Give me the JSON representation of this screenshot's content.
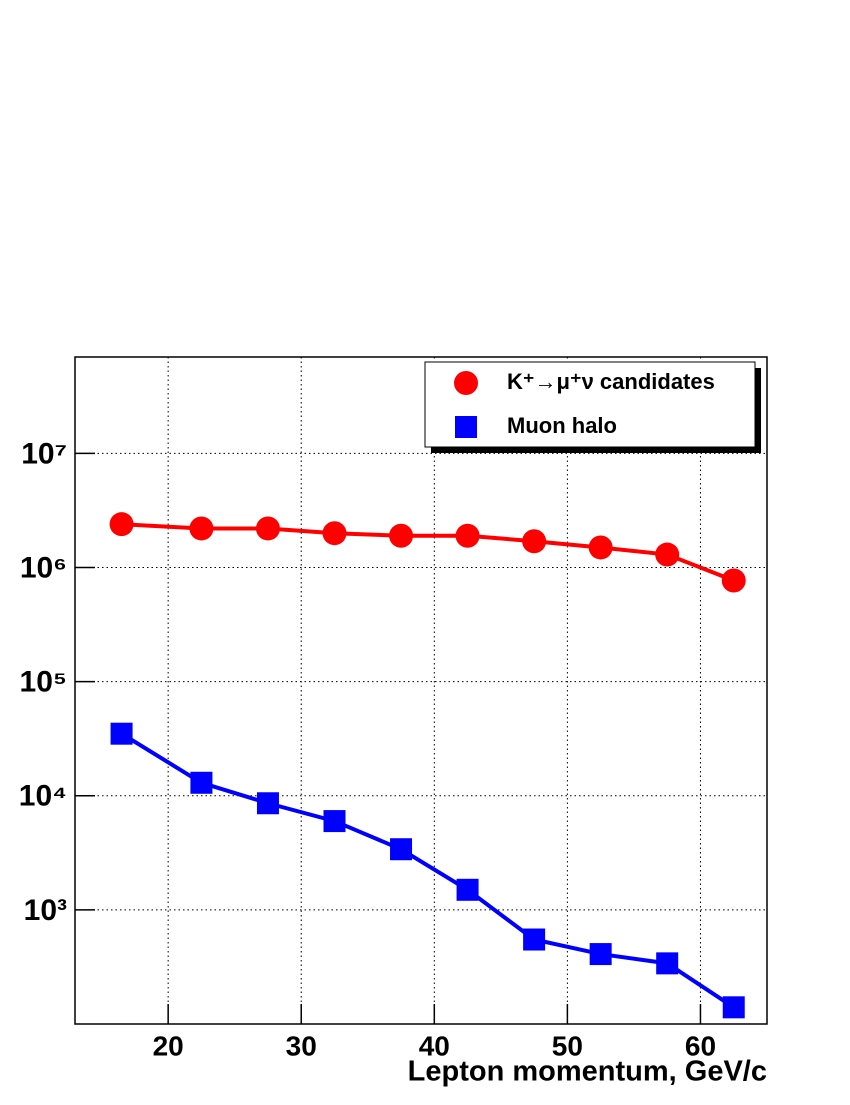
{
  "chart_data": {
    "type": "line",
    "x_label": "Lepton momentum, GeV/c",
    "x": [
      16.5,
      22.5,
      27.5,
      32.5,
      37.5,
      42.5,
      47.5,
      52.5,
      57.5,
      62.5
    ],
    "series": [
      {
        "name": "K⁺→μ⁺ν candidates",
        "color": "#ff0000",
        "marker": "circle",
        "values": [
          2400000,
          2200000,
          2200000,
          2000000,
          1900000,
          1900000,
          1700000,
          1500000,
          1300000,
          770000
        ]
      },
      {
        "name": "Muon halo",
        "color": "#0000ff",
        "marker": "square",
        "values": [
          35000,
          13000,
          8600,
          6000,
          3400,
          1500,
          550,
          410,
          340,
          140
        ]
      }
    ],
    "xlim": [
      13,
      65
    ],
    "xticks": [
      20,
      30,
      40,
      50,
      60
    ],
    "ylim": [
      100,
      70000000
    ],
    "ylog": true,
    "yticks": [
      {
        "value": 1000,
        "label": "10³"
      },
      {
        "value": 10000,
        "label": "10⁴"
      },
      {
        "value": 100000,
        "label": "10⁵"
      },
      {
        "value": 1000000,
        "label": "10⁶"
      },
      {
        "value": 10000000,
        "label": "10⁷"
      }
    ],
    "grid": true,
    "legend": "top-right"
  }
}
